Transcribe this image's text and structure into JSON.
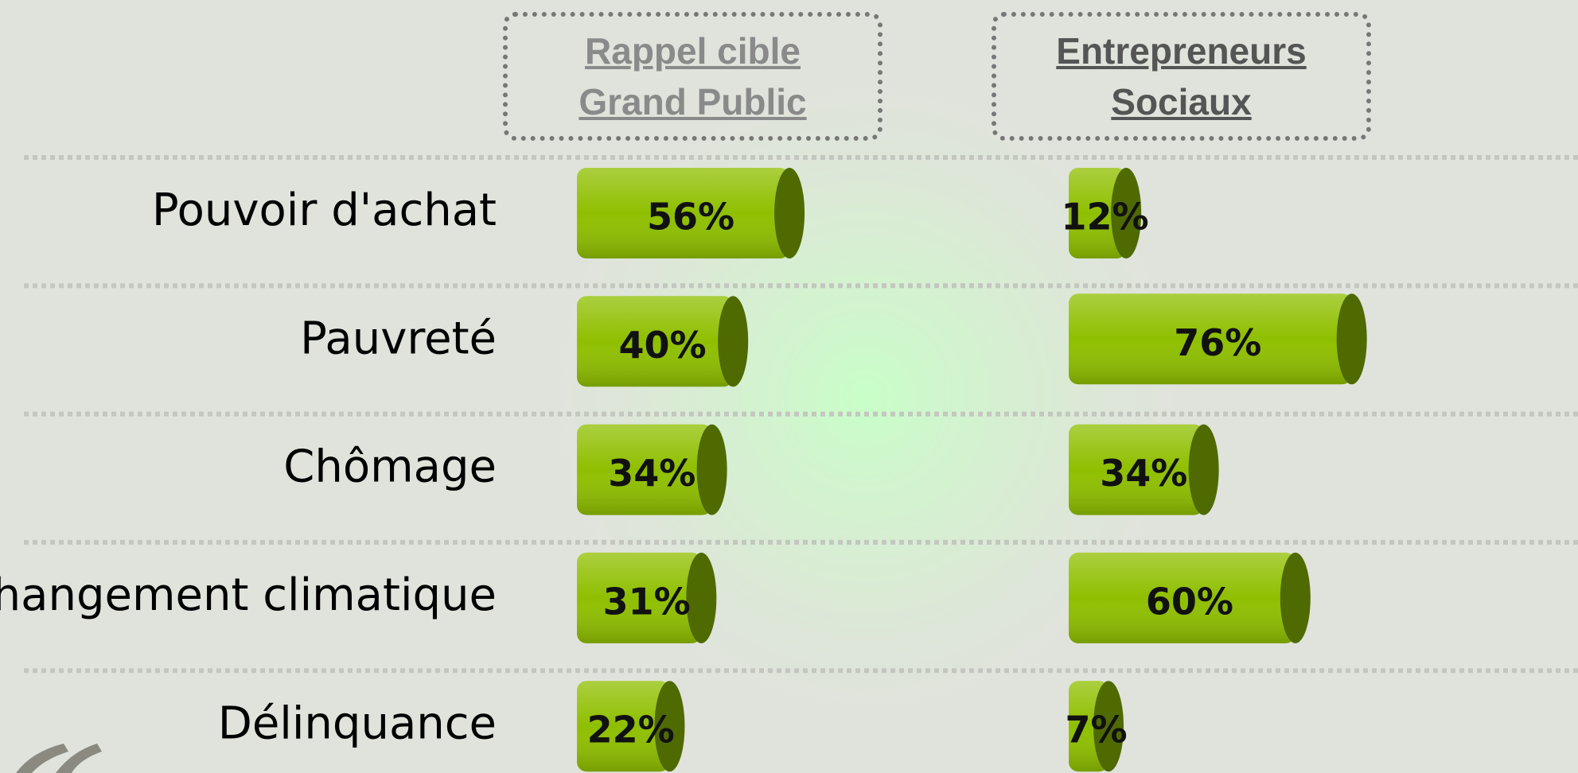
{
  "chart_data": {
    "type": "bar",
    "categories": [
      "Pouvoir d'achat",
      "Pauvreté",
      "Chômage",
      "Changement climatique",
      "Délinquance"
    ],
    "series": [
      {
        "name": "Rappel cible Grand Public",
        "color": "#8fbf00",
        "values": [
          56,
          40,
          34,
          31,
          22
        ],
        "value_labels": [
          "56%",
          "40%",
          "34%",
          "31%",
          "22%"
        ]
      },
      {
        "name": "Entrepreneurs Sociaux",
        "color": "#8fbf00",
        "values": [
          12,
          76,
          34,
          60,
          7
        ],
        "value_labels": [
          "12%",
          "76%",
          "34%",
          "60%",
          "7%"
        ]
      }
    ]
  }
}
